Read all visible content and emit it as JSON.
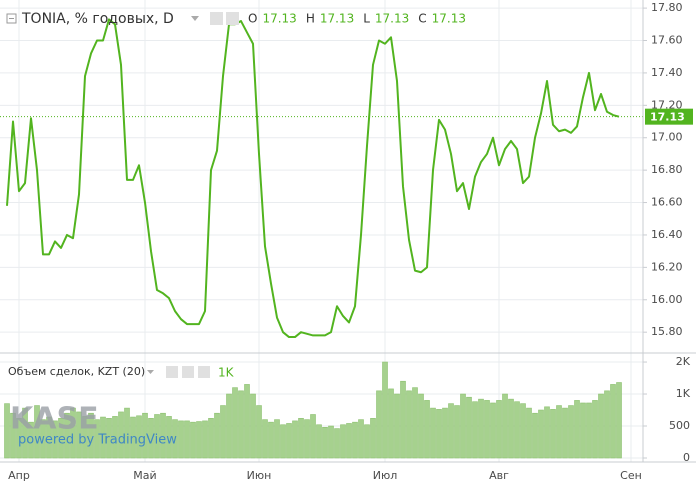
{
  "chart_data": [
    {
      "type": "line",
      "title": "TONIA, % годовых, D",
      "legend_values": [
        {
          "label": "O",
          "value": 17.13
        },
        {
          "label": "H",
          "value": 17.13
        },
        {
          "label": "L",
          "value": 17.13
        },
        {
          "label": "C",
          "value": 17.13
        }
      ],
      "last_value": 17.13,
      "categories": [
        null,
        null,
        "Апр",
        null,
        null,
        null,
        null,
        null,
        null,
        null,
        null,
        null,
        null,
        null,
        null,
        null,
        null,
        null,
        null,
        null,
        null,
        null,
        null,
        "Май",
        null,
        null,
        null,
        null,
        null,
        null,
        null,
        null,
        null,
        null,
        null,
        null,
        null,
        null,
        null,
        null,
        null,
        null,
        "Июн",
        null,
        null,
        null,
        null,
        null,
        null,
        null,
        null,
        null,
        null,
        null,
        null,
        null,
        null,
        null,
        null,
        null,
        null,
        null,
        null,
        "Июл",
        null,
        null,
        null,
        null,
        null,
        null,
        null,
        null,
        null,
        null,
        null,
        null,
        null,
        null,
        null,
        null,
        null,
        null,
        "Авг",
        null,
        null,
        null,
        null,
        null,
        null,
        null,
        null,
        null,
        null,
        null,
        null,
        null,
        null,
        null,
        null,
        null,
        null,
        null,
        null,
        null,
        "Сен"
      ],
      "series": [
        {
          "name": "TONIA",
          "color": "#52b41f",
          "values": [
            16.58,
            17.1,
            16.67,
            16.72,
            17.12,
            16.8,
            16.28,
            16.28,
            16.36,
            16.32,
            16.4,
            16.38,
            16.65,
            17.38,
            17.52,
            17.6,
            17.6,
            17.73,
            17.7,
            17.45,
            16.74,
            16.74,
            16.83,
            16.6,
            16.3,
            16.06,
            16.04,
            16.01,
            15.93,
            15.88,
            15.85,
            15.85,
            15.85,
            15.93,
            16.8,
            16.92,
            17.38,
            17.7,
            17.7,
            17.72,
            17.65,
            17.58,
            16.9,
            16.33,
            16.1,
            15.89,
            15.8,
            15.77,
            15.77,
            15.8,
            15.79,
            15.78,
            15.78,
            15.78,
            15.8,
            15.96,
            15.9,
            15.86,
            15.96,
            16.4,
            16.95,
            17.45,
            17.6,
            17.58,
            17.62,
            17.35,
            16.7,
            16.37,
            16.18,
            16.17,
            16.2,
            16.8,
            17.11,
            17.05,
            16.9,
            16.67,
            16.72,
            16.56,
            16.76,
            16.85,
            16.9,
            17.0,
            16.83,
            16.93,
            16.98,
            16.93,
            16.72,
            16.76,
            17.0,
            17.15,
            17.35,
            17.08,
            17.04,
            17.05,
            17.03,
            17.07,
            17.25,
            17.4,
            17.17,
            17.27,
            17.16,
            17.14,
            17.13,
            null,
            null
          ]
        }
      ],
      "ylim": [
        15.69,
        17.85
      ],
      "yticks": [
        {
          "value": 17.8,
          "label": "17.80"
        },
        {
          "value": 17.6,
          "label": "17.60"
        },
        {
          "value": 17.4,
          "label": "17.40"
        },
        {
          "value": 17.2,
          "label": "17.20"
        },
        {
          "value": 17.0,
          "label": "17.00"
        },
        {
          "value": 16.8,
          "label": "16.80"
        },
        {
          "value": 16.6,
          "label": "16.60"
        },
        {
          "value": 16.4,
          "label": "16.40"
        },
        {
          "value": 16.2,
          "label": "16.20"
        },
        {
          "value": 16.0,
          "label": "16.00"
        },
        {
          "value": 15.8,
          "label": "15.80"
        }
      ],
      "grid": true
    },
    {
      "type": "bar",
      "title": "Объем сделок, KZT (20)",
      "legend_value": {
        "value": 1180,
        "label": "1K"
      },
      "color": "#a6d18e",
      "values": [
        850,
        700,
        620,
        780,
        560,
        820,
        600,
        640,
        580,
        620,
        700,
        780,
        720,
        650,
        700,
        600,
        640,
        620,
        650,
        720,
        780,
        640,
        660,
        700,
        620,
        680,
        700,
        650,
        600,
        580,
        580,
        560,
        570,
        580,
        620,
        700,
        820,
        1000,
        1100,
        1050,
        1150,
        1000,
        820,
        600,
        560,
        600,
        520,
        540,
        580,
        620,
        600,
        680,
        520,
        480,
        500,
        460,
        520,
        540,
        560,
        600,
        520,
        620,
        1050,
        1500,
        1080,
        1000,
        1200,
        1050,
        1100,
        1000,
        900,
        780,
        760,
        780,
        850,
        820,
        1000,
        950,
        880,
        920,
        900,
        860,
        900,
        1000,
        920,
        880,
        850,
        780,
        700,
        750,
        800,
        760,
        820,
        780,
        820,
        900,
        860,
        860,
        900,
        1000,
        1050,
        1150,
        1180,
        null,
        null
      ],
      "ylim": [
        0,
        1610
      ],
      "yticks": [
        {
          "value": 1500,
          "label": "2K"
        },
        {
          "value": 1000,
          "label": "1K"
        },
        500,
        0
      ],
      "grid": true
    }
  ],
  "watermark": {
    "logo": "KASE",
    "powered": "powered by TradingView"
  }
}
